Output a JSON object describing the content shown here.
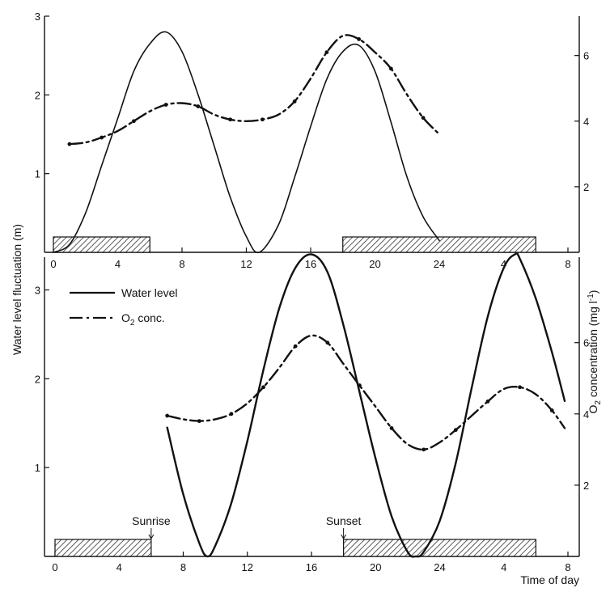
{
  "chart_data": [
    {
      "type": "line",
      "panel": "top",
      "x_ticks": [
        "0",
        "4",
        "8",
        "12",
        "16",
        "20",
        "24",
        "4",
        "8"
      ],
      "xlim": [
        0,
        32
      ],
      "ylim_left": [
        0,
        3
      ],
      "y_ticks_left": [
        "1",
        "2",
        "3"
      ],
      "ylim_right": [
        0,
        7.2
      ],
      "y_ticks_right": [
        "2",
        "4",
        "6"
      ],
      "series": [
        {
          "key": "water_level",
          "style": "solid",
          "axis": "left",
          "x": [
            0,
            1,
            2,
            3,
            4,
            5,
            6,
            7,
            8,
            9,
            10,
            11,
            12,
            12.8,
            14,
            15,
            16,
            17,
            18,
            19,
            20,
            21,
            22,
            23,
            24
          ],
          "y": [
            0,
            0.1,
            0.5,
            1.1,
            1.7,
            2.3,
            2.65,
            2.8,
            2.55,
            2.0,
            1.35,
            0.7,
            0.2,
            0,
            0.35,
            0.95,
            1.6,
            2.2,
            2.55,
            2.63,
            2.3,
            1.65,
            0.95,
            0.45,
            0.15
          ]
        },
        {
          "key": "o2_conc",
          "style": "dashed",
          "axis": "right",
          "x": [
            1,
            2,
            3,
            4,
            5,
            6,
            7,
            8,
            9,
            10,
            11,
            12,
            13,
            14,
            15,
            16,
            17,
            18,
            19,
            20,
            21,
            22,
            23,
            24
          ],
          "y": [
            3.3,
            3.35,
            3.5,
            3.7,
            4.0,
            4.3,
            4.5,
            4.55,
            4.45,
            4.2,
            4.05,
            4.0,
            4.05,
            4.2,
            4.6,
            5.3,
            6.1,
            6.6,
            6.5,
            6.1,
            5.6,
            4.8,
            4.1,
            3.6
          ]
        }
      ],
      "night_bars": [
        [
          0,
          6
        ],
        [
          18,
          30
        ]
      ]
    },
    {
      "type": "line",
      "panel": "bottom",
      "x_ticks": [
        "0",
        "4",
        "8",
        "12",
        "16",
        "20",
        "24",
        "4",
        "8"
      ],
      "xlim": [
        0,
        32
      ],
      "xlabel": "Time of day",
      "ylim_left": [
        0,
        3.35
      ],
      "y_ticks_left": [
        "1",
        "2",
        "3"
      ],
      "ylim_right": [
        0,
        8.4
      ],
      "y_ticks_right": [
        "2",
        "4",
        "6"
      ],
      "series": [
        {
          "key": "water_level",
          "style": "solid",
          "axis": "left",
          "x": [
            7,
            8,
            9,
            9.5,
            10,
            11,
            12,
            13,
            14,
            15,
            16,
            17,
            18,
            19,
            20,
            21,
            22,
            22.5,
            23,
            24,
            25,
            26,
            27,
            28,
            28.7,
            29,
            30,
            31,
            31.8
          ],
          "y": [
            1.45,
            0.7,
            0.15,
            0,
            0.12,
            0.6,
            1.3,
            2.1,
            2.8,
            3.25,
            3.4,
            3.2,
            2.6,
            1.85,
            1.1,
            0.45,
            0.05,
            0,
            0.05,
            0.4,
            1.05,
            1.9,
            2.7,
            3.25,
            3.4,
            3.35,
            2.9,
            2.3,
            1.75
          ]
        },
        {
          "key": "o2_conc",
          "style": "dashed",
          "axis": "right",
          "x": [
            7,
            8,
            9,
            10,
            11,
            12,
            13,
            14,
            15,
            16,
            17,
            18,
            19,
            20,
            21,
            22,
            23,
            24,
            25,
            26,
            27,
            28,
            29,
            30,
            31,
            31.8
          ],
          "y": [
            3.95,
            3.85,
            3.8,
            3.85,
            4.0,
            4.3,
            4.75,
            5.3,
            5.9,
            6.2,
            6.0,
            5.4,
            4.8,
            4.2,
            3.6,
            3.15,
            3.0,
            3.2,
            3.55,
            3.95,
            4.35,
            4.7,
            4.75,
            4.55,
            4.1,
            3.6
          ]
        }
      ],
      "night_bars": [
        [
          0,
          6
        ],
        [
          18,
          30
        ]
      ],
      "annotations": [
        {
          "text": "Sunrise",
          "x": 6
        },
        {
          "text": "Sunset",
          "x": 18
        }
      ]
    }
  ],
  "shared": {
    "ylabel_left": "Water level fluctuation (m)",
    "ylabel_right_prefix": "O",
    "ylabel_right_sub": "2",
    "ylabel_right_suffix": " concentration (mg l",
    "ylabel_right_sup": "-1",
    "ylabel_right_close": ")",
    "legend": {
      "water_level": "Water level",
      "o2_prefix": "O",
      "o2_sub": "2",
      "o2_suffix": " conc."
    },
    "colors": {
      "line": "#111111",
      "hatch": "#333333"
    }
  }
}
